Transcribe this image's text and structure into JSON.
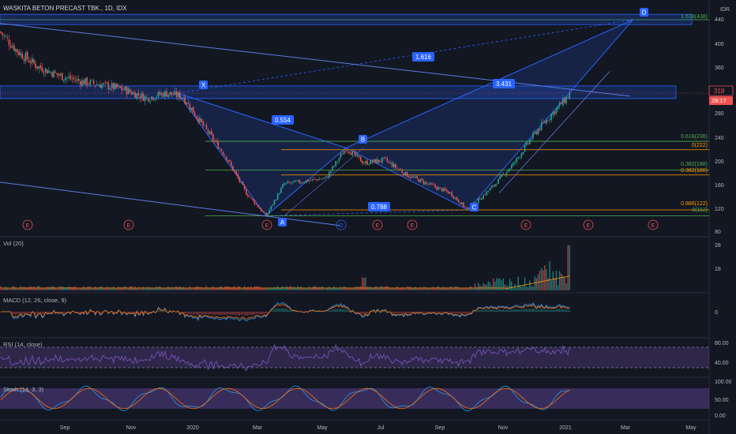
{
  "symbol_title": "WASKITA BETON PRECAST TBK., 1D, IDX",
  "currency": "IDR",
  "colors": {
    "bg": "#131722",
    "grid": "#1f2433",
    "text": "#b2b5be",
    "up": "#26a69a",
    "down": "#ef5350",
    "pattern_blue": "#2962ff",
    "fib_green": "#4caf50",
    "fib_orange": "#ff9800",
    "macd_line": "#2196f3",
    "signal_line": "#ff6d00",
    "rsi_purple": "#7e57c2",
    "stoch_k": "#2196f3",
    "stoch_d": "#ff6d00"
  },
  "price_axis": {
    "ticks": [
      "440",
      "400",
      "360",
      "280",
      "240",
      "200",
      "160",
      "120",
      "80"
    ],
    "current_price": "318",
    "countdown": "28:17"
  },
  "time_axis": [
    "Sep",
    "Nov",
    "2020",
    "Mar",
    "May",
    "Jul",
    "Sep",
    "Nov",
    "2021",
    "Mar",
    "May"
  ],
  "harmonic_points": [
    {
      "label": "X",
      "date": "2019-12-31",
      "price": 316
    },
    {
      "label": "A",
      "date": "2020-03-24",
      "price": 112
    },
    {
      "label": "B",
      "date": "2020-06-08",
      "price": 225
    },
    {
      "label": "C",
      "date": "2020-10-02",
      "price": 122
    },
    {
      "label": "D",
      "date": "2021-03-08",
      "price": 438
    }
  ],
  "ratio_labels": [
    "0.554",
    "0.788",
    "1.616",
    "3.431"
  ],
  "fib_levels": [
    {
      "label": "1.618(438)",
      "price": 438,
      "color": "green"
    },
    {
      "label": "0.618(236)",
      "price": 236,
      "color": "green"
    },
    {
      "label": "0(222)",
      "price": 222,
      "color": "orange"
    },
    {
      "label": "0.382(188)",
      "price": 188,
      "color": "green"
    },
    {
      "label": "0.382(180)",
      "price": 180,
      "color": "orange"
    },
    {
      "label": "0.886(122)",
      "price": 122,
      "color": "orange"
    },
    {
      "label": "0(112)",
      "price": 112,
      "color": "green"
    }
  ],
  "event_markers": [
    {
      "label": "E",
      "date": "2019-07-28"
    },
    {
      "label": "E",
      "date": "2019-10-30"
    },
    {
      "label": "E",
      "date": "2020-03-04"
    },
    {
      "label": "D",
      "date": "2020-04-29"
    },
    {
      "label": "E",
      "date": "2020-06-26"
    },
    {
      "label": "E",
      "date": "2020-08-01"
    },
    {
      "label": "E",
      "date": "2020-11-07"
    },
    {
      "label": "E",
      "date": "2021-01-15"
    },
    {
      "label": "E",
      "date": "2021-04-02"
    }
  ],
  "panes": {
    "vol": {
      "title": "Vol (20)",
      "ticks": [
        "28",
        "18"
      ]
    },
    "macd": {
      "title": "MACD (12, 26, close, 9)",
      "ticks": [
        "0"
      ]
    },
    "rsi": {
      "title": "RSI (14, close)",
      "ticks": [
        "80.00",
        "40.00"
      ]
    },
    "stoch": {
      "title": "Stoch (14, 3, 3)",
      "ticks": [
        "100.00",
        "50.00",
        "0.00"
      ]
    }
  },
  "chart_data": {
    "type": "candlestick",
    "title": "WASKITA BETON PRECAST TBK., 1D, IDX",
    "x": [
      "2019-07-15",
      "2019-08-01",
      "2019-08-20",
      "2019-09-10",
      "2019-10-01",
      "2019-10-20",
      "2019-11-10",
      "2019-12-01",
      "2019-12-20",
      "2020-01-05",
      "2020-01-25",
      "2020-02-15",
      "2020-03-05",
      "2020-03-24",
      "2020-04-10",
      "2020-05-01",
      "2020-05-20",
      "2020-06-08",
      "2020-06-25",
      "2020-07-15",
      "2020-08-05",
      "2020-08-25",
      "2020-09-15",
      "2020-10-02",
      "2020-10-25",
      "2020-11-15",
      "2020-12-05",
      "2020-12-20",
      "2021-01-05",
      "2021-01-08"
    ],
    "close": [
      418,
      385,
      360,
      345,
      335,
      330,
      322,
      308,
      316,
      310,
      260,
      210,
      150,
      112,
      165,
      170,
      175,
      225,
      200,
      205,
      180,
      165,
      150,
      122,
      160,
      200,
      250,
      280,
      310,
      318
    ],
    "y_range": [
      80,
      460
    ],
    "log_scale": false,
    "grid": true
  }
}
